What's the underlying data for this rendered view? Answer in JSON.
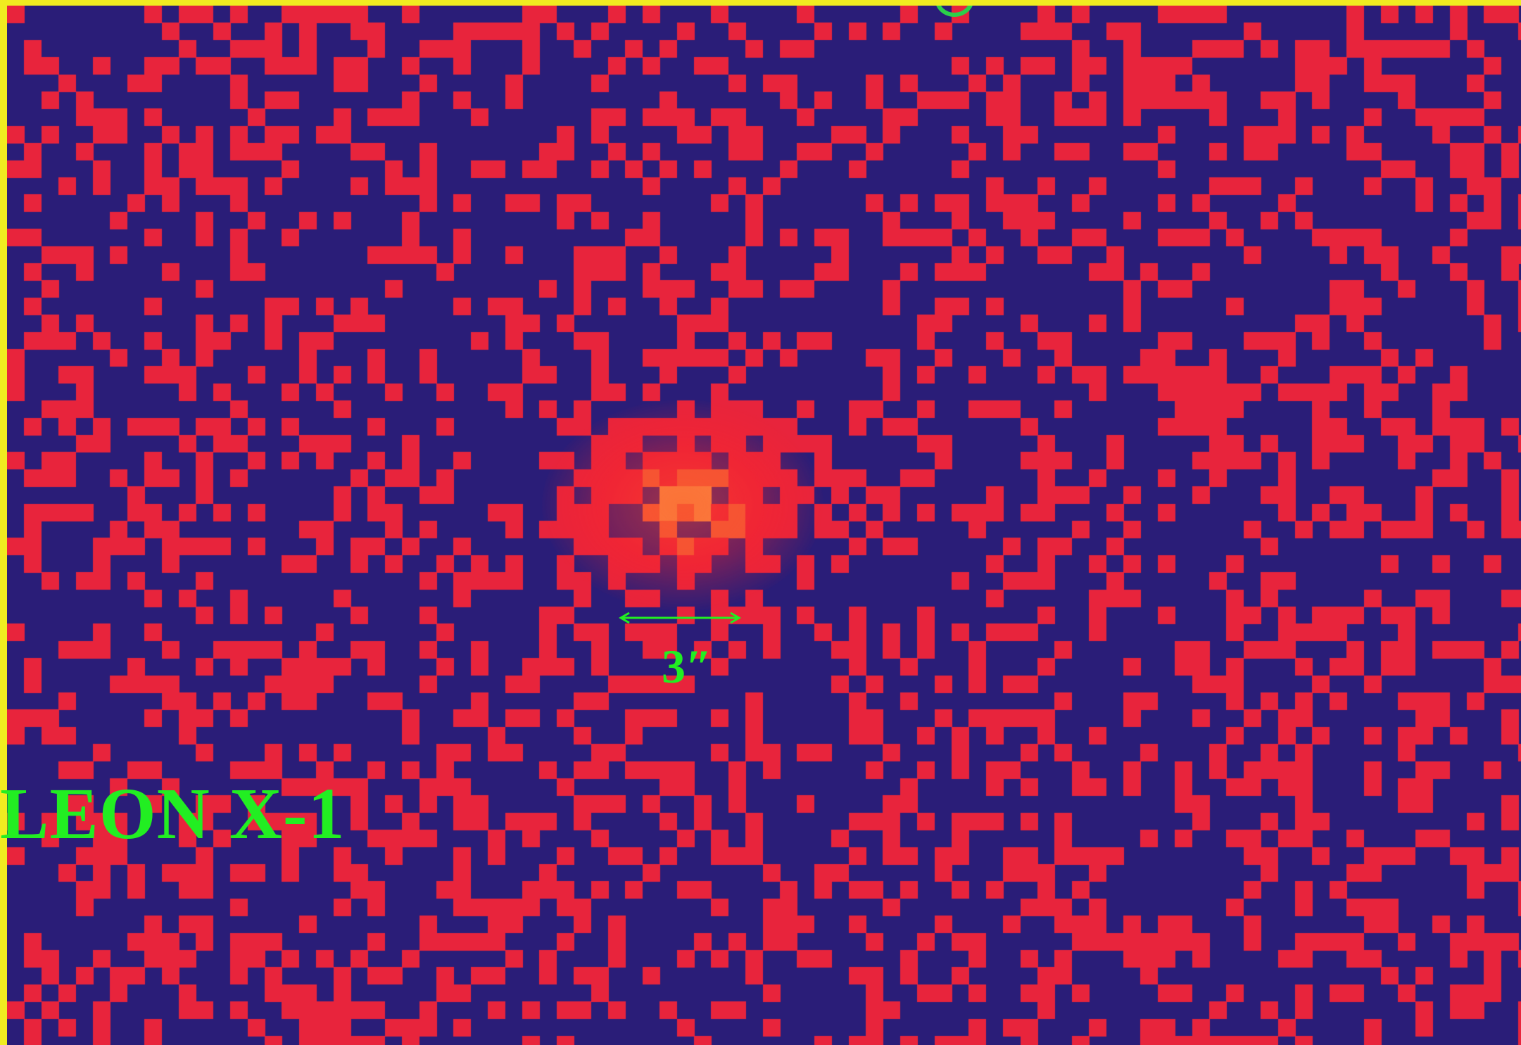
{
  "image": {
    "labels": {
      "source_name": "LEON X-1",
      "scale": "3″"
    },
    "colors": {
      "background": "#2a1d78",
      "pixel": "#e8243c",
      "bright_pixel": "#f06a3a",
      "core_pixel": "#f7a84a",
      "label": "#22ee22",
      "border": "#f0ec20"
    }
  }
}
